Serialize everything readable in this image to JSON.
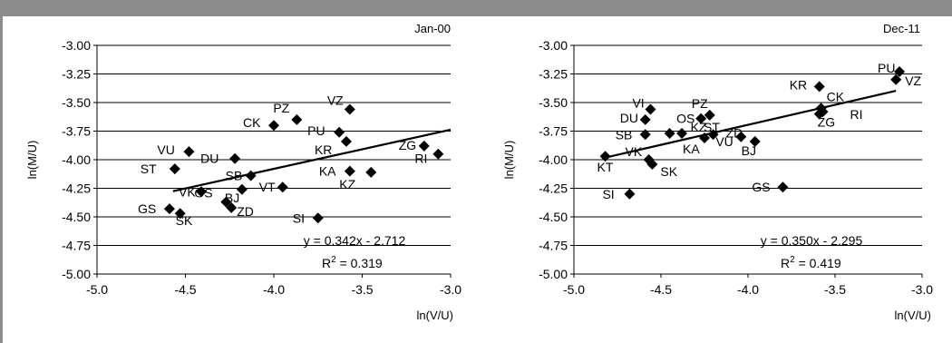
{
  "chart_data": [
    {
      "type": "scatter",
      "title": "Jan-00",
      "xlabel": "ln(V/U)",
      "ylabel": "ln(M/U)",
      "xlim": [
        -5.0,
        -3.0
      ],
      "ylim": [
        -5.0,
        -3.0
      ],
      "x_ticks": [
        "-5.0",
        "-4.5",
        "-4.0",
        "-3.5",
        "-3.0"
      ],
      "y_ticks": [
        "-3.00",
        "-3.25",
        "-3.50",
        "-3.75",
        "-4.00",
        "-4.25",
        "-4.50",
        "-4.75",
        "-5.00"
      ],
      "grid": "horizontal",
      "trendline": {
        "slope": 0.342,
        "intercept": -2.712,
        "x_range": [
          -4.57,
          -3.0
        ]
      },
      "equation": "y = 0.342x - 2.712",
      "r2_label": "R",
      "r2_sup": "2",
      "r2_value": " = 0.319",
      "points": [
        {
          "label": "PZ",
          "x": -3.87,
          "y": -3.65
        },
        {
          "label": "CK",
          "x": -4.0,
          "y": -3.7
        },
        {
          "label": "VZ",
          "x": -3.57,
          "y": -3.56
        },
        {
          "label": "PU",
          "x": -3.63,
          "y": -3.76
        },
        {
          "label": "KR",
          "x": -3.59,
          "y": -3.84
        },
        {
          "label": "ZG",
          "x": -3.15,
          "y": -3.88
        },
        {
          "label": "RI",
          "x": -3.07,
          "y": -3.95
        },
        {
          "label": "VU",
          "x": -4.48,
          "y": -3.93
        },
        {
          "label": "DU",
          "x": -4.22,
          "y": -3.99
        },
        {
          "label": "ST",
          "x": -4.56,
          "y": -4.08
        },
        {
          "label": "KA",
          "x": -3.57,
          "y": -4.1
        },
        {
          "label": "SB",
          "x": -4.13,
          "y": -4.14
        },
        {
          "label": "VT",
          "x": -3.95,
          "y": -4.24
        },
        {
          "label": "BJ",
          "x": -4.18,
          "y": -4.26
        },
        {
          "label": "KZ",
          "x": -3.45,
          "y": -4.11
        },
        {
          "label": "VK",
          "x": -4.41,
          "y": -4.28
        },
        {
          "label": "GS",
          "x": -4.59,
          "y": -4.43
        },
        {
          "label": "SK",
          "x": -4.53,
          "y": -4.47
        },
        {
          "label": "OS",
          "x": -4.27,
          "y": -4.37
        },
        {
          "label": "ZD",
          "x": -4.24,
          "y": -4.42
        },
        {
          "label": "SI",
          "x": -3.75,
          "y": -4.51
        }
      ]
    },
    {
      "type": "scatter",
      "title": "Dec-11",
      "xlabel": "ln(V/U)",
      "ylabel": "ln(M/U)",
      "xlim": [
        -5.0,
        -3.0
      ],
      "ylim": [
        -5.0,
        -3.0
      ],
      "x_ticks": [
        "-5.0",
        "-4.5",
        "-4.0",
        "-3.5",
        "-3.0"
      ],
      "y_ticks": [
        "-3.00",
        "-3.25",
        "-3.50",
        "-3.75",
        "-4.00",
        "-4.25",
        "-4.50",
        "-4.75",
        "-5.00"
      ],
      "grid": "horizontal",
      "trendline": {
        "slope": 0.35,
        "intercept": -2.295,
        "x_range": [
          -4.82,
          -3.15
        ]
      },
      "equation": "y = 0.350x - 2.295",
      "r2_label": "R",
      "r2_sup": "2",
      "r2_value": " = 0.419",
      "points": [
        {
          "label": "PU",
          "x": -3.13,
          "y": -3.23
        },
        {
          "label": "VZ",
          "x": -3.15,
          "y": -3.3
        },
        {
          "label": "KR",
          "x": -3.59,
          "y": -3.36
        },
        {
          "label": "CK",
          "x": -3.58,
          "y": -3.55
        },
        {
          "label": "RI",
          "x": -3.57,
          "y": -3.58
        },
        {
          "label": "ZG",
          "x": -3.59,
          "y": -3.6
        },
        {
          "label": "VI",
          "x": -4.56,
          "y": -3.56
        },
        {
          "label": "DU",
          "x": -4.59,
          "y": -3.65
        },
        {
          "label": "PZ",
          "x": -4.22,
          "y": -3.61
        },
        {
          "label": "OS",
          "x": -4.27,
          "y": -3.64
        },
        {
          "label": "SB",
          "x": -4.59,
          "y": -3.78
        },
        {
          "label": "KZ",
          "x": -4.45,
          "y": -3.77
        },
        {
          "label": "ST",
          "x": -4.38,
          "y": -3.77
        },
        {
          "label": "ZD",
          "x": -4.2,
          "y": -3.78
        },
        {
          "label": "KA",
          "x": -4.25,
          "y": -3.81
        },
        {
          "label": "VU",
          "x": -4.04,
          "y": -3.8
        },
        {
          "label": "BJ",
          "x": -3.96,
          "y": -3.84
        },
        {
          "label": "VK",
          "x": -4.57,
          "y": -4.0
        },
        {
          "label": "KT",
          "x": -4.82,
          "y": -3.97
        },
        {
          "label": "SK",
          "x": -4.55,
          "y": -4.04
        },
        {
          "label": "SI",
          "x": -4.68,
          "y": -4.3
        },
        {
          "label": "GS",
          "x": -3.8,
          "y": -4.24
        }
      ]
    }
  ]
}
